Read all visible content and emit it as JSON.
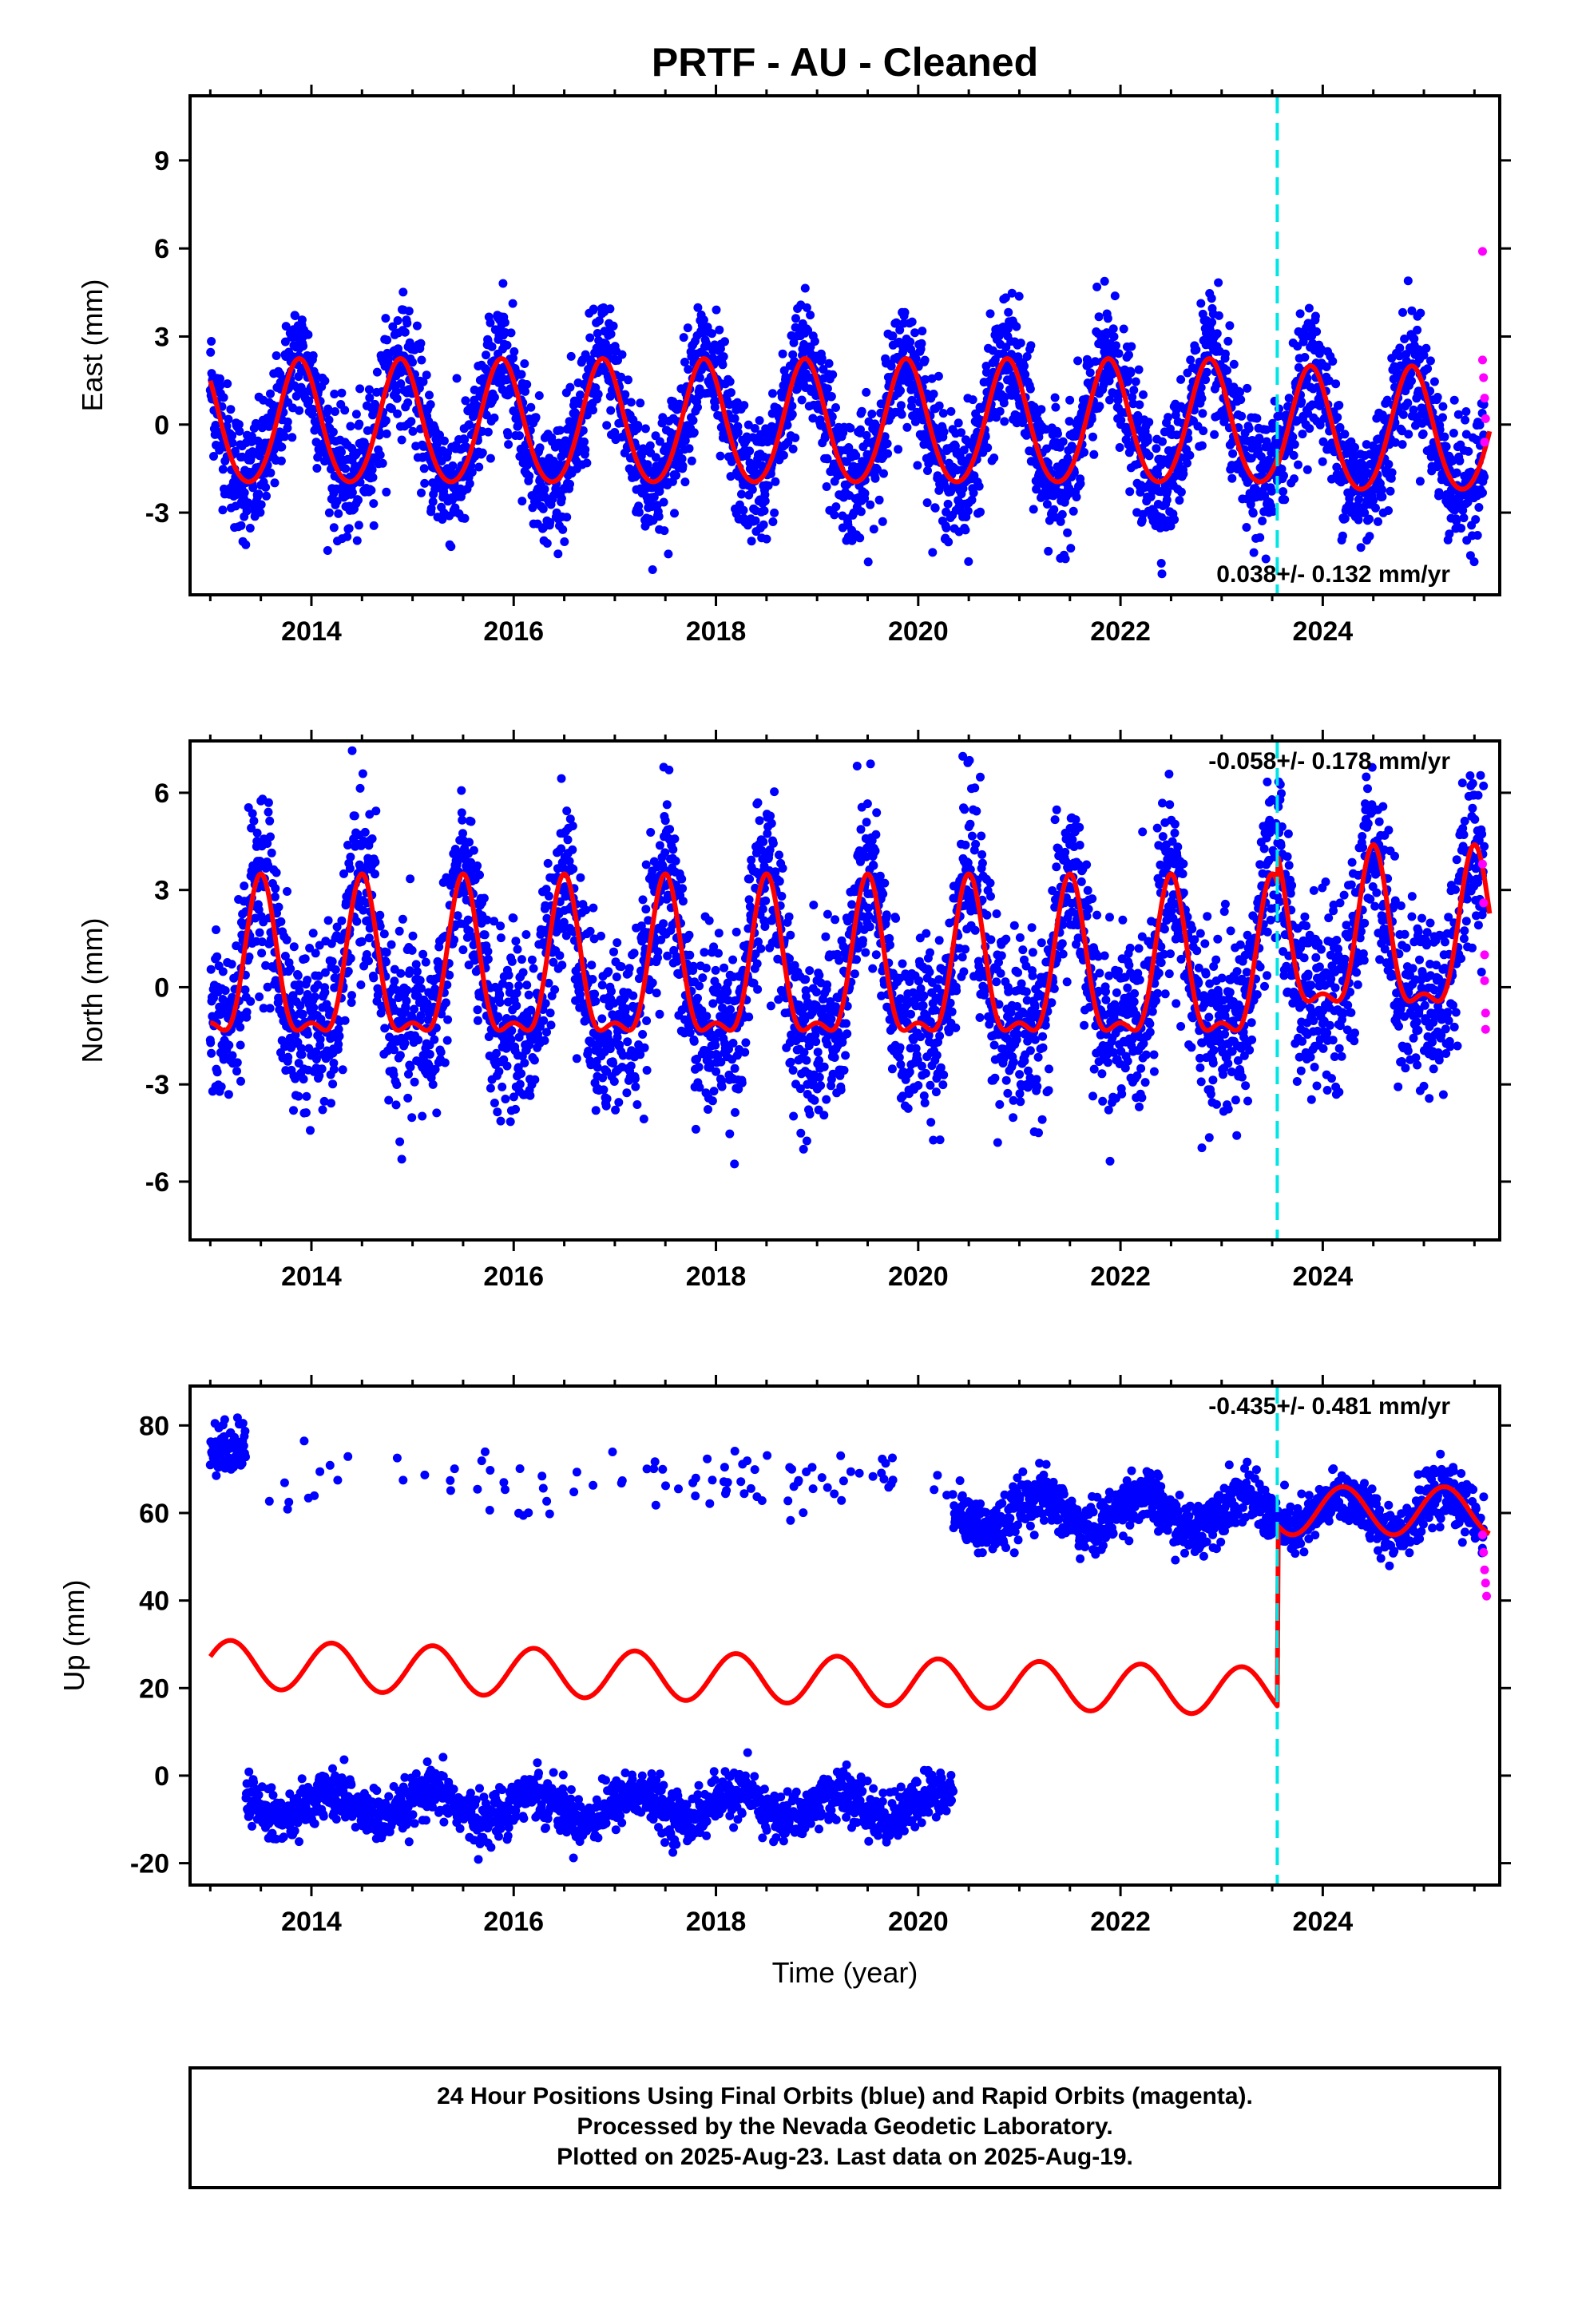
{
  "page": {
    "title": "PRTF  - AU - Cleaned",
    "footer": [
      "24 Hour Positions Using Final Orbits (blue) and Rapid Orbits (magenta).",
      "Processed by the Nevada Geodetic Laboratory.",
      "Plotted on 2025-Aug-23. Last data on 2025-Aug-19."
    ]
  },
  "colors": {
    "final_orbits": "#0000ff",
    "rapid_orbits": "#ff00ff",
    "model": "#ff0000",
    "equipment_change": "#00e5e5",
    "frame": "#000000"
  },
  "chart_data": [
    {
      "type": "scatter",
      "name": "east",
      "ylabel": "East (mm)",
      "xlabel": "",
      "xlim": [
        2012.8,
        2025.75
      ],
      "ylim": [
        -5.8,
        11.2
      ],
      "xticks": [
        2014,
        2016,
        2018,
        2020,
        2022,
        2024
      ],
      "yticks": [
        -3,
        0,
        3,
        6,
        9
      ],
      "rate_text": "0.038+/- 0.132 mm/yr",
      "rate_position": "bottom-right",
      "break_epoch": 2023.55,
      "model": {
        "start": 2013.0,
        "end": 2025.65,
        "offset": -0.05,
        "trend": 0.0,
        "amplitude": 2.1,
        "phase_peak": 0.88,
        "amp_half": 0.2,
        "amp_late": 2.1,
        "offset_late": -0.3,
        "jump": 0.0
      },
      "scatter": {
        "noise": 1.05,
        "count": 3800,
        "gaps": []
      },
      "rapid_points": [
        [
          2025.58,
          5.9
        ],
        [
          2025.58,
          2.2
        ],
        [
          2025.59,
          1.6
        ],
        [
          2025.6,
          0.9
        ],
        [
          2025.61,
          0.2
        ],
        [
          2025.6,
          -0.6
        ]
      ]
    },
    {
      "type": "scatter",
      "name": "north",
      "ylabel": "North (mm)",
      "xlabel": "",
      "xlim": [
        2012.8,
        2025.75
      ],
      "ylim": [
        -7.8,
        7.6
      ],
      "xticks": [
        2014,
        2016,
        2018,
        2020,
        2022,
        2024
      ],
      "yticks": [
        -6,
        -3,
        0,
        3,
        6
      ],
      "rate_text": "-0.058+/- 0.178 mm/yr",
      "rate_position": "top-right",
      "break_epoch": 2023.55,
      "model": {
        "start": 2013.0,
        "end": 2025.65,
        "offset": 0.3,
        "trend": 0.0,
        "amplitude": 2.3,
        "phase_peak": 0.5,
        "amp_half": 0.9,
        "amp_late": 2.3,
        "offset_late": 1.2,
        "jump": 0.0
      },
      "scatter": {
        "noise": 1.35,
        "count": 3800,
        "gaps": []
      },
      "rapid_points": [
        [
          2025.58,
          3.8
        ],
        [
          2025.59,
          2.6
        ],
        [
          2025.6,
          1.0
        ],
        [
          2025.6,
          0.2
        ],
        [
          2025.61,
          -0.8
        ],
        [
          2025.61,
          -1.3
        ]
      ]
    },
    {
      "type": "scatter",
      "name": "up",
      "ylabel": "Up (mm)",
      "xlabel": "Time (year)",
      "xlim": [
        2012.8,
        2025.75
      ],
      "ylim": [
        -25,
        89
      ],
      "xticks": [
        2014,
        2016,
        2018,
        2020,
        2022,
        2024
      ],
      "yticks": [
        -20,
        0,
        20,
        40,
        60,
        80
      ],
      "rate_text": "-0.435+/- 0.481 mm/yr",
      "rate_position": "top-right",
      "break_epoch": 2023.55,
      "model": {
        "start": 2013.0,
        "end": 2025.65,
        "offset": 25.5,
        "trend": -0.6,
        "amplitude": 5.5,
        "phase_peak": 0.2,
        "amp_half": 0.0,
        "amp_late": 5.5,
        "offset_late": 60.5,
        "jump": 39.0
      },
      "scatter": {
        "noise": 3.2,
        "count": 3000,
        "gaps": []
      },
      "up_clusters": [
        {
          "from": 2013.0,
          "to": 2013.35,
          "center": 75
        },
        {
          "from": 2013.35,
          "to": 2020.35,
          "center": -7
        },
        {
          "from": 2013.5,
          "to": 2020.2,
          "center": 67,
          "sparse": true
        },
        {
          "from": 2020.25,
          "to": 2025.65,
          "center": 60
        }
      ],
      "rapid_points": [
        [
          2025.58,
          55
        ],
        [
          2025.59,
          51
        ],
        [
          2025.6,
          47
        ],
        [
          2025.61,
          44
        ],
        [
          2025.62,
          41
        ]
      ]
    }
  ]
}
